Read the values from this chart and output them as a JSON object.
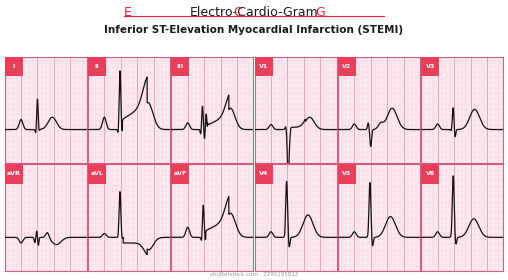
{
  "title1": "Electro-Cardio-Gram",
  "title2": "Inferior ST-Elevation Myocardial Infarction (STEMI)",
  "watermark": "shutterstock.com · 2295195813",
  "bg_color": "#ffffff",
  "grid_bg": "#fce8ee",
  "grid_line_major": "#e8a0b8",
  "grid_line_minor": "#f5d0dc",
  "border_color": "#d06080",
  "label_bg": "#e8405a",
  "label_text": "#ffffff",
  "ecg_color": "#111111",
  "red_color": "#e8203a",
  "black_color": "#1a1a1a",
  "leads": [
    "I",
    "II",
    "III",
    "V1",
    "V2",
    "V3",
    "aVR",
    "aVL",
    "aVF",
    "V4",
    "V5",
    "V6"
  ],
  "nrows": 2,
  "ncols": 6
}
